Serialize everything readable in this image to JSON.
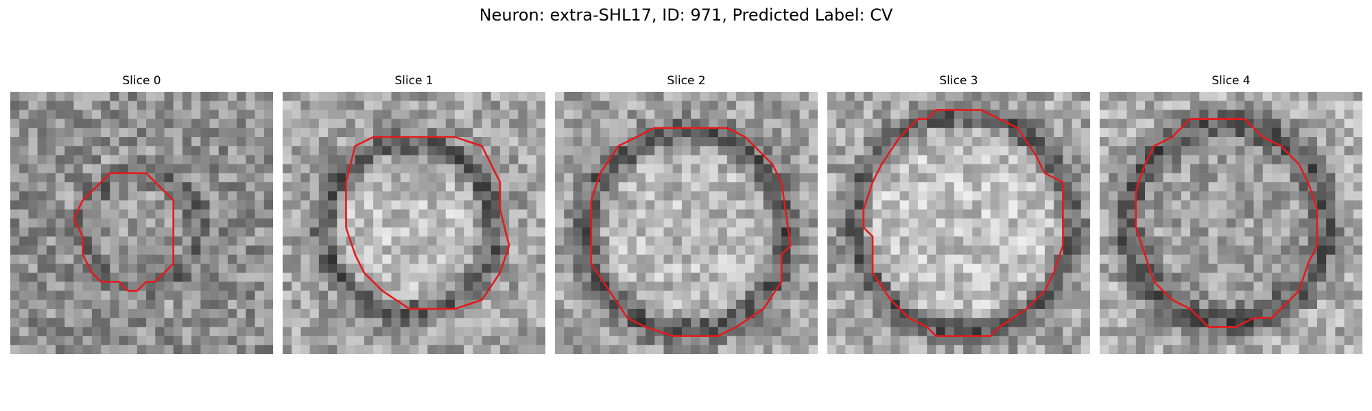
{
  "figure": {
    "title": "Neuron: extra-SHL17, ID: 971, Predicted Label: CV",
    "contour_color": "#e31a1c",
    "grid_size": 29,
    "panels": [
      {
        "title": "Slice 0",
        "contour": [
          [
            11,
            9
          ],
          [
            15,
            9
          ],
          [
            18,
            12
          ],
          [
            18,
            19
          ],
          [
            16,
            21
          ],
          [
            15,
            21
          ],
          [
            14,
            22
          ],
          [
            13,
            22
          ],
          [
            12,
            21
          ],
          [
            10,
            21
          ],
          [
            9,
            20
          ],
          [
            8,
            18
          ],
          [
            8,
            16
          ],
          [
            7,
            14
          ],
          [
            8,
            12
          ],
          [
            9,
            11
          ]
        ]
      },
      {
        "title": "Slice 1",
        "contour": [
          [
            8,
            6
          ],
          [
            10,
            5
          ],
          [
            19,
            5
          ],
          [
            22,
            6
          ],
          [
            23,
            8
          ],
          [
            24,
            10
          ],
          [
            24,
            13
          ],
          [
            25,
            17
          ],
          [
            24,
            20
          ],
          [
            22,
            23
          ],
          [
            19,
            24
          ],
          [
            16,
            24
          ],
          [
            14,
            24
          ],
          [
            11,
            22
          ],
          [
            9,
            20
          ],
          [
            8,
            18
          ],
          [
            7,
            15
          ],
          [
            7,
            12
          ],
          [
            7,
            10
          ]
        ]
      },
      {
        "title": "Slice 2",
        "contour": [
          [
            7,
            6
          ],
          [
            9,
            5
          ],
          [
            11,
            4
          ],
          [
            19,
            4
          ],
          [
            21,
            5
          ],
          [
            24,
            8
          ],
          [
            25,
            10
          ],
          [
            26,
            17
          ],
          [
            25,
            18
          ],
          [
            25,
            21
          ],
          [
            23,
            24
          ],
          [
            20,
            26
          ],
          [
            18,
            27
          ],
          [
            13,
            27
          ],
          [
            10,
            26
          ],
          [
            8,
            25
          ],
          [
            6,
            22
          ],
          [
            4,
            19
          ],
          [
            4,
            16
          ],
          [
            4,
            12
          ],
          [
            5,
            9
          ]
        ]
      },
      {
        "title": "Slice 3",
        "contour": [
          [
            8,
            5
          ],
          [
            10,
            3
          ],
          [
            11,
            3
          ],
          [
            12,
            2
          ],
          [
            17,
            2
          ],
          [
            19,
            3
          ],
          [
            21,
            4
          ],
          [
            23,
            7
          ],
          [
            24,
            9
          ],
          [
            26,
            10
          ],
          [
            26,
            17
          ],
          [
            25,
            20
          ],
          [
            24,
            22
          ],
          [
            22,
            24
          ],
          [
            19,
            26
          ],
          [
            18,
            27
          ],
          [
            12,
            27
          ],
          [
            11,
            26
          ],
          [
            9,
            25
          ],
          [
            7,
            23
          ],
          [
            5,
            20
          ],
          [
            5,
            16
          ],
          [
            4,
            15
          ],
          [
            4,
            13
          ],
          [
            5,
            10
          ],
          [
            6,
            8
          ]
        ]
      },
      {
        "title": "Slice 4",
        "contour": [
          [
            6,
            6
          ],
          [
            8,
            5
          ],
          [
            10,
            3
          ],
          [
            12,
            3
          ],
          [
            16,
            3
          ],
          [
            18,
            5
          ],
          [
            20,
            6
          ],
          [
            22,
            8
          ],
          [
            23,
            10
          ],
          [
            24,
            13
          ],
          [
            24,
            17
          ],
          [
            23,
            19
          ],
          [
            22,
            22
          ],
          [
            20,
            24
          ],
          [
            19,
            25
          ],
          [
            17,
            25
          ],
          [
            15,
            26
          ],
          [
            12,
            26
          ],
          [
            10,
            24
          ],
          [
            8,
            23
          ],
          [
            6,
            21
          ],
          [
            5,
            18
          ],
          [
            4,
            15
          ],
          [
            4,
            11
          ],
          [
            5,
            8
          ]
        ]
      }
    ]
  }
}
